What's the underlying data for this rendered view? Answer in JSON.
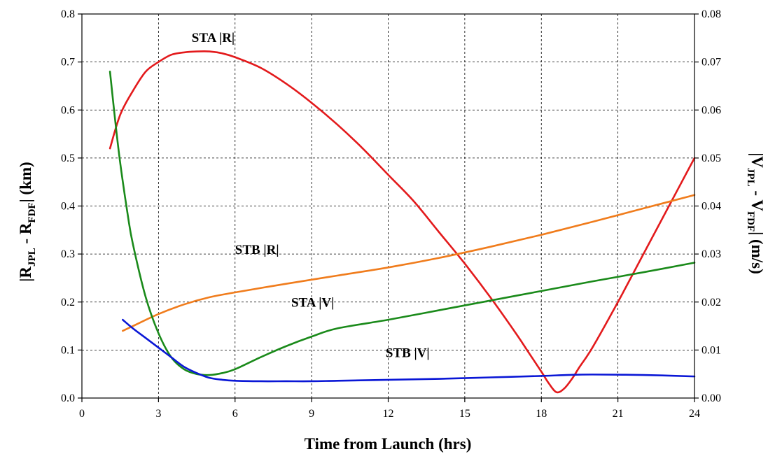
{
  "chart_data": {
    "type": "line",
    "xlabel": "Time from Launch (hrs)",
    "ylabel_left": {
      "base": "|R",
      "sub1": "JPL",
      "mid": " - R",
      "sub2": "FDF",
      "end": "| (km)"
    },
    "ylabel_right": {
      "base": "|V",
      "sub1": "JPL",
      "mid": " - V",
      "sub2": "FDF",
      "end": "| (m/s)"
    },
    "xlim": [
      0,
      24
    ],
    "xticks": [
      0,
      3,
      6,
      9,
      12,
      15,
      18,
      21,
      24
    ],
    "ylim_left": [
      0,
      0.8
    ],
    "yticks_left": [
      "0.0",
      "0.1",
      "0.2",
      "0.3",
      "0.4",
      "0.5",
      "0.6",
      "0.7",
      "0.8"
    ],
    "ylim_right": [
      0,
      0.08
    ],
    "yticks_right": [
      "0.00",
      "0.01",
      "0.02",
      "0.03",
      "0.04",
      "0.05",
      "0.06",
      "0.07",
      "0.08"
    ],
    "grid": true,
    "series": [
      {
        "name": "STA |R|",
        "axis": "left",
        "color": "#e31a1c",
        "x": [
          1.1,
          1.5,
          2.0,
          2.5,
          3.0,
          3.5,
          4.0,
          4.5,
          5.0,
          5.5,
          6.0,
          7.0,
          8.0,
          9.0,
          10.0,
          11.0,
          12.0,
          13.0,
          14.0,
          15.0,
          16.0,
          17.0,
          17.5,
          18.0,
          18.3,
          18.6,
          18.9,
          19.2,
          19.5,
          20.0,
          21.0,
          22.0,
          23.0,
          24.0
        ],
        "y": [
          0.52,
          0.59,
          0.64,
          0.68,
          0.7,
          0.715,
          0.72,
          0.722,
          0.722,
          0.718,
          0.71,
          0.688,
          0.655,
          0.615,
          0.57,
          0.52,
          0.465,
          0.41,
          0.345,
          0.28,
          0.21,
          0.135,
          0.095,
          0.055,
          0.03,
          0.012,
          0.02,
          0.04,
          0.065,
          0.105,
          0.2,
          0.3,
          0.4,
          0.5
        ]
      },
      {
        "name": "STB |R|",
        "axis": "left",
        "color": "#f07c1c",
        "x": [
          1.6,
          2.0,
          3.0,
          4.0,
          5.0,
          6.0,
          8.0,
          10.0,
          12.0,
          14.0,
          16.0,
          18.0,
          20.0,
          22.0,
          24.0
        ],
        "y": [
          0.14,
          0.15,
          0.175,
          0.195,
          0.21,
          0.22,
          0.238,
          0.255,
          0.272,
          0.292,
          0.315,
          0.34,
          0.367,
          0.395,
          0.423
        ]
      },
      {
        "name": "STA |V|",
        "axis": "right",
        "color": "#1a8a1a",
        "x": [
          1.1,
          1.3,
          1.5,
          1.8,
          2.0,
          2.5,
          3.0,
          3.5,
          4.0,
          4.5,
          5.0,
          5.5,
          6.0,
          7.0,
          8.0,
          9.0,
          10.0,
          12.0,
          14.0,
          16.0,
          18.0,
          20.0,
          22.0,
          24.0
        ],
        "y": [
          0.068,
          0.058,
          0.049,
          0.038,
          0.032,
          0.021,
          0.0135,
          0.0085,
          0.006,
          0.005,
          0.0048,
          0.0052,
          0.006,
          0.0085,
          0.0108,
          0.0128,
          0.0145,
          0.0163,
          0.0183,
          0.0203,
          0.0223,
          0.0243,
          0.0262,
          0.0282
        ]
      },
      {
        "name": "STB |V|",
        "axis": "right",
        "color": "#0a17d6",
        "x": [
          1.6,
          2.0,
          2.5,
          3.0,
          3.5,
          4.0,
          4.5,
          5.0,
          5.5,
          6.0,
          7.0,
          8.0,
          9.0,
          10.0,
          12.0,
          14.0,
          16.0,
          18.0,
          19.0,
          20.0,
          22.0,
          24.0
        ],
        "y": [
          0.0163,
          0.0145,
          0.0125,
          0.0105,
          0.0085,
          0.0065,
          0.0052,
          0.0042,
          0.0038,
          0.0036,
          0.0035,
          0.0035,
          0.0035,
          0.0036,
          0.0038,
          0.004,
          0.0043,
          0.0046,
          0.0048,
          0.0049,
          0.0048,
          0.0045
        ]
      }
    ],
    "annotations": [
      {
        "text": "STA |R|",
        "series": 0,
        "at_x": 4.3,
        "at_y": 0.742
      },
      {
        "text": "STB |R|",
        "series": 1,
        "at_x": 6.0,
        "at_y": 0.3
      },
      {
        "text": "STA |V|",
        "series": 2,
        "at_x": 8.2,
        "at_y": 0.19
      },
      {
        "text": "STB |V|",
        "series": 3,
        "at_x": 11.9,
        "at_y": 0.085
      }
    ]
  }
}
